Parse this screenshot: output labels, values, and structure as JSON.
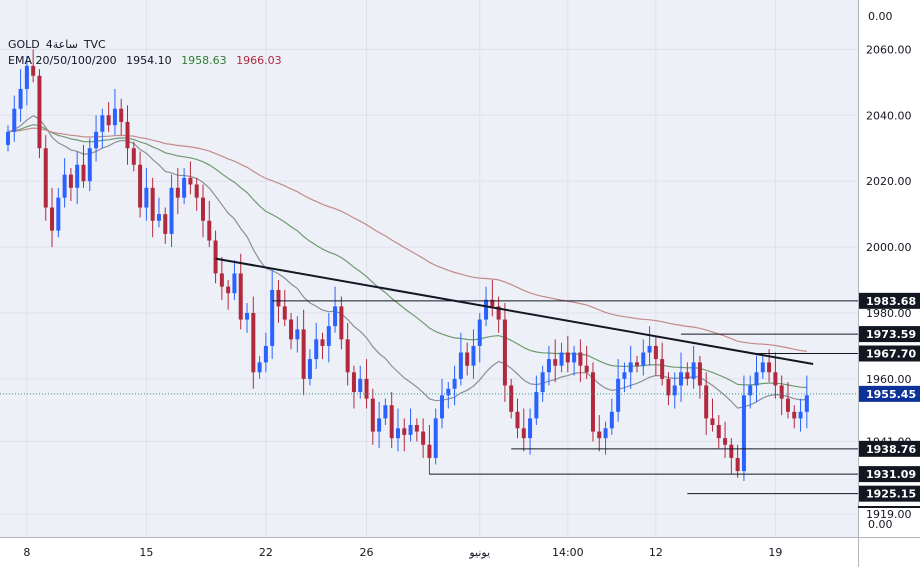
{
  "chart_data": {
    "type": "candlestick",
    "symbol": "GOLD",
    "interval": "ساعة4",
    "source": "TVC",
    "ema_label": "EMA 20/50/100/200",
    "ema_values": [
      "1954.10",
      "1958.63",
      "1966.03"
    ],
    "y_ticks": [
      "2060.00",
      "2040.00",
      "2020.00",
      "2000.00",
      "1980.00",
      "1960.00",
      "1941.00",
      "1919.00"
    ],
    "ylim": [
      1912,
      2075
    ],
    "x_ticks": [
      {
        "label": "8",
        "i": 3
      },
      {
        "label": "15",
        "i": 22
      },
      {
        "label": "22",
        "i": 41
      },
      {
        "label": "26",
        "i": 57
      },
      {
        "label": "يونيو",
        "i": 75
      },
      {
        "label": "14:00",
        "i": 89
      },
      {
        "label": "12",
        "i": 103
      },
      {
        "label": "19",
        "i": 122
      }
    ],
    "price_labels": [
      "1983.68",
      "1973.59",
      "1967.70",
      "1955.45",
      "1938.76",
      "1931.09",
      "1925.15"
    ],
    "current_price": "1955.45",
    "sub_pane_labels": [
      "0.00",
      "0.00"
    ],
    "levels": [
      {
        "value": 1983.68,
        "from_i": 42
      },
      {
        "value": 1973.59,
        "from_i": 107
      },
      {
        "value": 1967.7,
        "from_i": 118
      },
      {
        "value": 1938.76,
        "from_i": 80
      },
      {
        "value": 1931.09,
        "from_i": 67
      },
      {
        "value": 1925.15,
        "from_i": 108
      }
    ],
    "trendline": {
      "from": {
        "i": 33,
        "price": 1996.5
      },
      "to": {
        "i": 128,
        "price": 1964.5
      }
    },
    "colors": {
      "up": "#2962ff",
      "down": "#b2283c",
      "ema_green": "#6f9a70",
      "ema_red": "#c48a8a",
      "ema_gray": "#8a8f96",
      "current": "#0c3299"
    },
    "close": [
      2035,
      2042,
      2048,
      2055,
      2052,
      2030,
      2012,
      2005,
      2015,
      2022,
      2018,
      2025,
      2020,
      2030,
      2035,
      2040,
      2037,
      2042,
      2038,
      2030,
      2025,
      2012,
      2018,
      2008,
      2010,
      2004,
      2018,
      2015,
      2021,
      2019,
      2015,
      2008,
      2002,
      1992,
      1988,
      1986,
      1992,
      1978,
      1980,
      1962,
      1965,
      1970,
      1987,
      1982,
      1978,
      1972,
      1975,
      1960,
      1966,
      1972,
      1970,
      1976,
      1982,
      1972,
      1962,
      1956,
      1960,
      1954,
      1944,
      1948,
      1952,
      1942,
      1945,
      1943,
      1946,
      1944,
      1940,
      1936,
      1948,
      1955,
      1957,
      1960,
      1968,
      1964,
      1970,
      1978,
      1984,
      1982,
      1978,
      1958,
      1950,
      1945,
      1942,
      1948,
      1956,
      1962,
      1966,
      1964,
      1968,
      1965,
      1968,
      1964,
      1962,
      1944,
      1942,
      1945,
      1950,
      1960,
      1962,
      1965,
      1964,
      1968,
      1970,
      1966,
      1960,
      1955,
      1958,
      1962,
      1960,
      1965,
      1958,
      1948,
      1946,
      1942,
      1940,
      1936,
      1932,
      1955,
      1958,
      1962,
      1965,
      1962,
      1958,
      1954,
      1950,
      1948,
      1950,
      1955
    ]
  }
}
